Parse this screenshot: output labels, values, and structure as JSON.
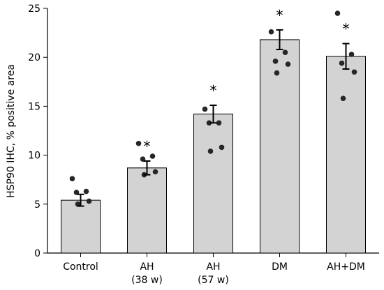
{
  "chart_data": {
    "type": "bar",
    "ylabel": "HSP90 IHC, % positive area",
    "ylim": [
      0,
      25
    ],
    "yticks": [
      0,
      5,
      10,
      15,
      20,
      25
    ],
    "grid": false,
    "bar_color": "#d3d3d3",
    "point_color": "#262626",
    "categories": [
      {
        "lines": [
          "Control"
        ],
        "value": 5.4,
        "error": 0.6,
        "significant": false,
        "points": [
          7.6,
          6.3,
          6.2,
          5.3,
          5.0
        ]
      },
      {
        "lines": [
          "AH",
          "(38 w)"
        ],
        "value": 8.7,
        "error": 0.7,
        "significant": true,
        "points": [
          11.2,
          9.9,
          9.6,
          8.3,
          8.0
        ]
      },
      {
        "lines": [
          "AH",
          "(57 w)"
        ],
        "value": 14.2,
        "error": 0.9,
        "significant": true,
        "points": [
          14.7,
          13.3,
          13.3,
          10.8,
          10.4
        ]
      },
      {
        "lines": [
          "DM"
        ],
        "value": 21.8,
        "error": 1.0,
        "significant": true,
        "points": [
          22.6,
          20.5,
          19.6,
          19.3,
          18.4
        ]
      },
      {
        "lines": [
          "AH+DM"
        ],
        "value": 20.1,
        "error": 1.3,
        "significant": true,
        "points": [
          24.5,
          20.3,
          19.4,
          18.5,
          15.8
        ]
      }
    ],
    "significance_marker": "*"
  }
}
